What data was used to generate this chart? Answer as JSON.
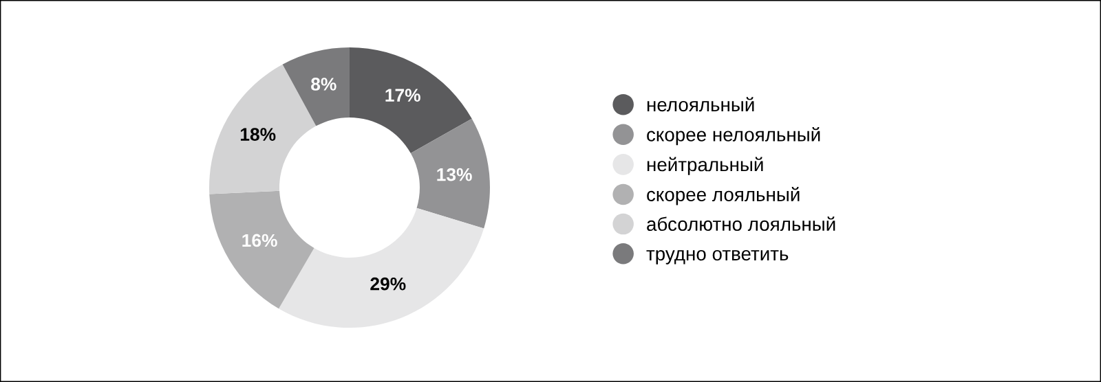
{
  "chart_data": {
    "type": "donut",
    "categories": [
      "нелояльный",
      "скорее нелояльный",
      "нейтральный",
      "скорее лояльный",
      "абсолютно лояльный",
      "трудно ответить"
    ],
    "values": [
      17,
      13,
      29,
      16,
      18,
      8
    ],
    "colors": [
      "#5b5b5d",
      "#939395",
      "#e6e6e7",
      "#b1b1b2",
      "#d3d3d4",
      "#7a7a7c"
    ],
    "value_labels": [
      "17%",
      "13%",
      "29%",
      "16%",
      "18%",
      "8%"
    ],
    "legend": "right"
  }
}
